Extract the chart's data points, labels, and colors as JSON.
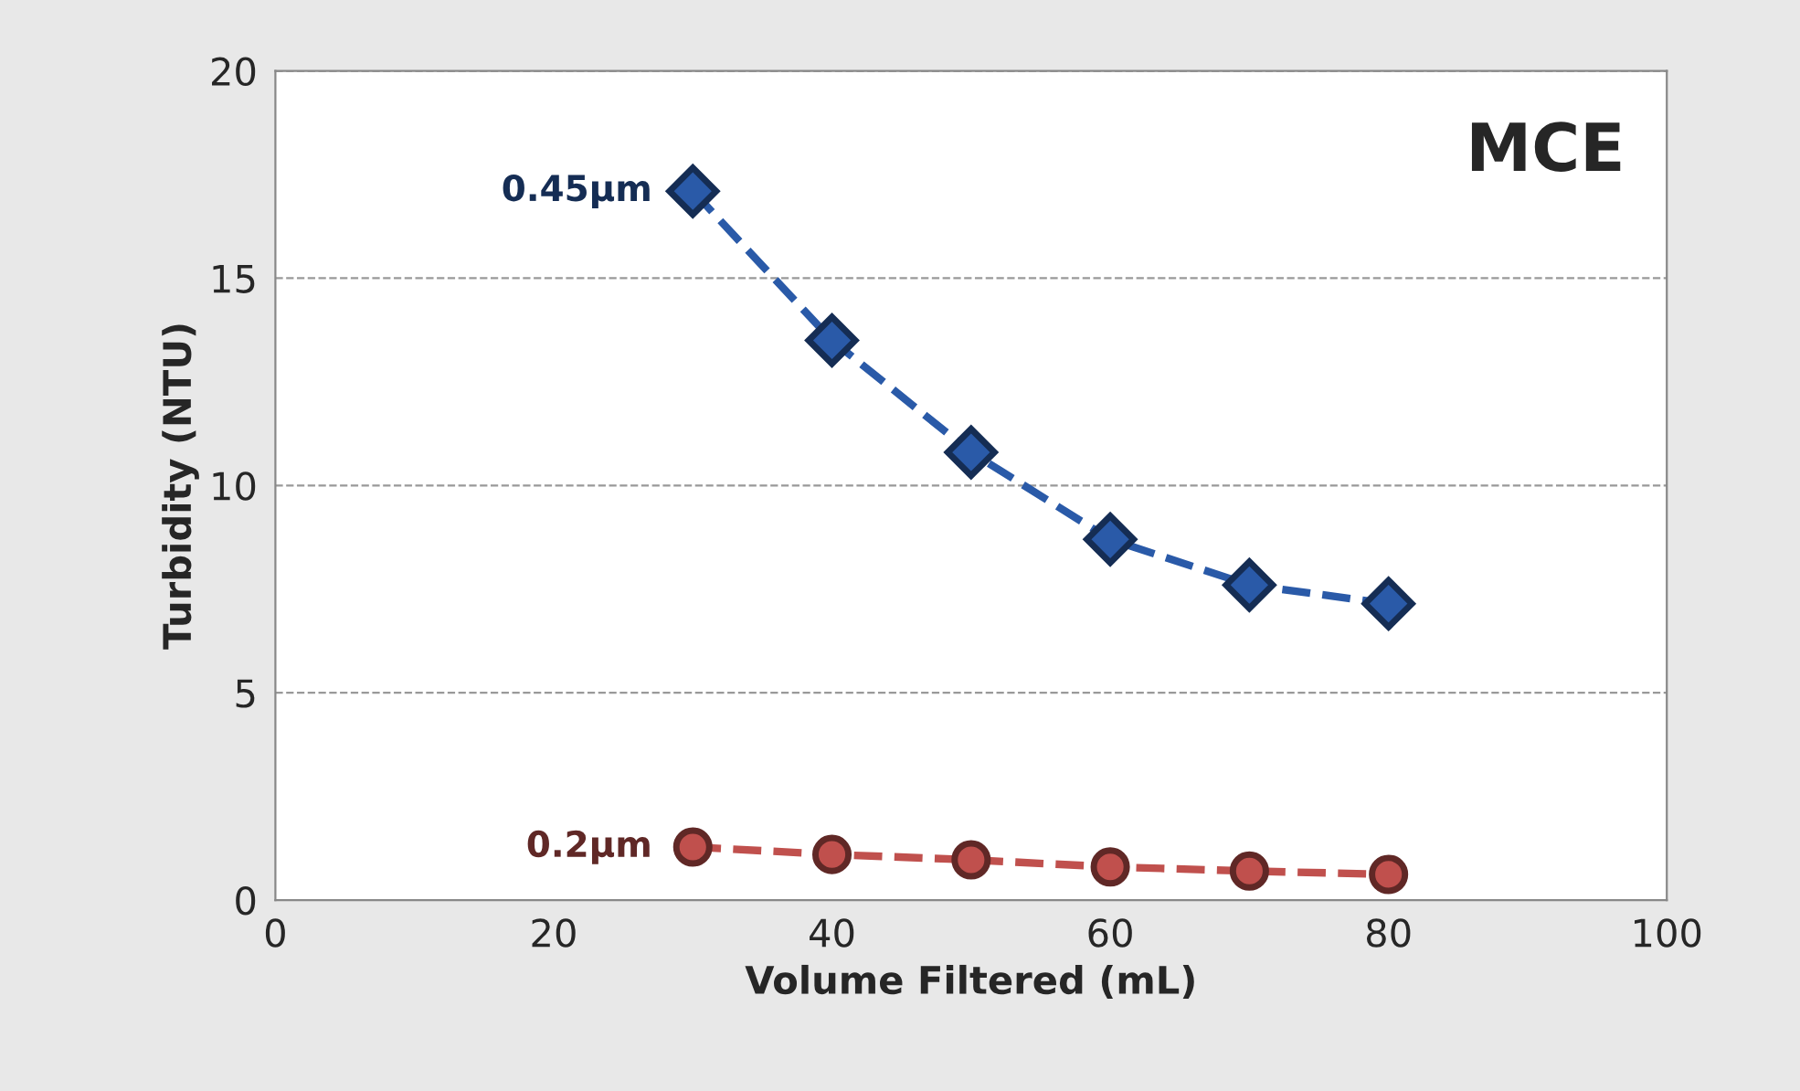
{
  "chart_data": {
    "type": "line",
    "title": "MCE",
    "xlabel": "Volume Filtered (mL)",
    "ylabel": "Turbidity (NTU)",
    "x": [
      30,
      40,
      50,
      60,
      70,
      80
    ],
    "series": [
      {
        "name": "0.45µm",
        "color": "#2a5aa8",
        "marker": "diamond",
        "values": [
          17.1,
          13.5,
          10.8,
          8.7,
          7.6,
          7.15
        ]
      },
      {
        "name": "0.2µm",
        "color": "#c0504d",
        "marker": "circle",
        "values": [
          1.28,
          1.1,
          0.97,
          0.8,
          0.7,
          0.62
        ]
      }
    ],
    "xlim": [
      0,
      100
    ],
    "xticks": [
      0,
      20,
      40,
      60,
      80,
      100
    ],
    "ylim": [
      0,
      20
    ],
    "yticks": [
      0,
      5,
      10,
      15,
      20
    ],
    "grid": "y",
    "line_style": "dashed",
    "legend": false
  }
}
